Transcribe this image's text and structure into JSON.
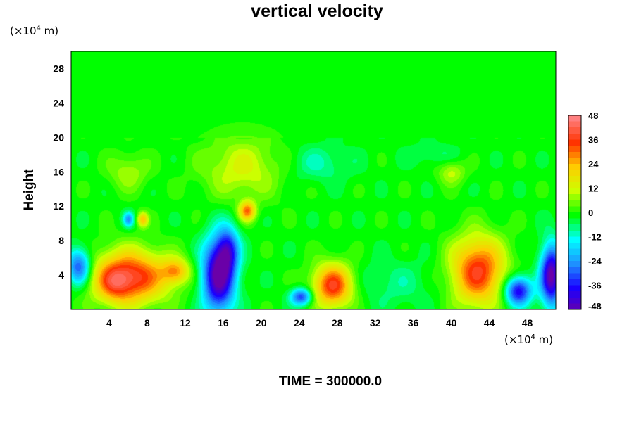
{
  "chart_data": {
    "type": "heatmap",
    "title": "vertical velocity",
    "xlabel": "",
    "ylabel": "Height",
    "x_unit": {
      "pre": "(×10",
      "exp": "4",
      "post": " m)"
    },
    "y_unit": {
      "pre": "(×10",
      "exp": "4",
      "post": " m)"
    },
    "xlim": [
      0,
      51
    ],
    "ylim": [
      0,
      30
    ],
    "x_ticks": [
      4,
      8,
      12,
      16,
      20,
      24,
      28,
      32,
      36,
      40,
      44,
      48
    ],
    "y_ticks": [
      4,
      8,
      12,
      16,
      20,
      24,
      28
    ],
    "colorbar": {
      "min": -48,
      "max": 48,
      "ticks": [
        48,
        36,
        24,
        12,
        0,
        -12,
        -24,
        -36,
        -48
      ],
      "colors": [
        "#6a00a8",
        "#1a00ff",
        "#1e90ff",
        "#00ffff",
        "#00ff00",
        "#ccff00",
        "#ffcc00",
        "#ff3300",
        "#ff8080"
      ]
    },
    "features": [
      {
        "x": 6.2,
        "y": 3.8,
        "value": 40,
        "sx": 2.8,
        "sy": 2.2
      },
      {
        "x": 4.5,
        "y": 3.0,
        "value": 12,
        "sx": 1.2,
        "sy": 1.5
      },
      {
        "x": 11.0,
        "y": 4.5,
        "value": 22,
        "sx": 1.0,
        "sy": 1.0
      },
      {
        "x": 7.5,
        "y": 10.5,
        "value": 24,
        "sx": 0.4,
        "sy": 0.6
      },
      {
        "x": 15.5,
        "y": 4.0,
        "value": -50,
        "sx": 1.2,
        "sy": 3.0
      },
      {
        "x": 16.5,
        "y": 7.0,
        "value": -25,
        "sx": 0.8,
        "sy": 1.8
      },
      {
        "x": 0.8,
        "y": 5.0,
        "value": -32,
        "sx": 0.9,
        "sy": 1.5
      },
      {
        "x": 6.0,
        "y": 10.5,
        "value": -22,
        "sx": 0.4,
        "sy": 0.6
      },
      {
        "x": 18.5,
        "y": 11.5,
        "value": 30,
        "sx": 0.6,
        "sy": 0.8
      },
      {
        "x": 27.5,
        "y": 2.8,
        "value": 38,
        "sx": 1.5,
        "sy": 1.8
      },
      {
        "x": 24.2,
        "y": 1.5,
        "value": -32,
        "sx": 0.8,
        "sy": 0.7
      },
      {
        "x": 34.0,
        "y": 3.0,
        "value": -6,
        "sx": 3.0,
        "sy": 2.0
      },
      {
        "x": 42.8,
        "y": 4.5,
        "value": 38,
        "sx": 2.0,
        "sy": 2.8
      },
      {
        "x": 47.0,
        "y": 2.2,
        "value": -40,
        "sx": 1.0,
        "sy": 1.2
      },
      {
        "x": 50.5,
        "y": 4.0,
        "value": -48,
        "sx": 0.8,
        "sy": 2.5
      },
      {
        "x": 18.0,
        "y": 16.5,
        "value": 14,
        "sx": 3.0,
        "sy": 2.5
      },
      {
        "x": 6.0,
        "y": 16.0,
        "value": 10,
        "sx": 1.5,
        "sy": 1.5
      },
      {
        "x": 40.0,
        "y": 16.0,
        "value": 12,
        "sx": 1.0,
        "sy": 1.0
      },
      {
        "x": 26.0,
        "y": 17.0,
        "value": -8,
        "sx": 2.5,
        "sy": 1.5
      },
      {
        "x": 38.0,
        "y": 18.0,
        "value": -5,
        "sx": 2.0,
        "sy": 1.0
      }
    ]
  },
  "footer": {
    "time": "TIME = 300000.0"
  }
}
